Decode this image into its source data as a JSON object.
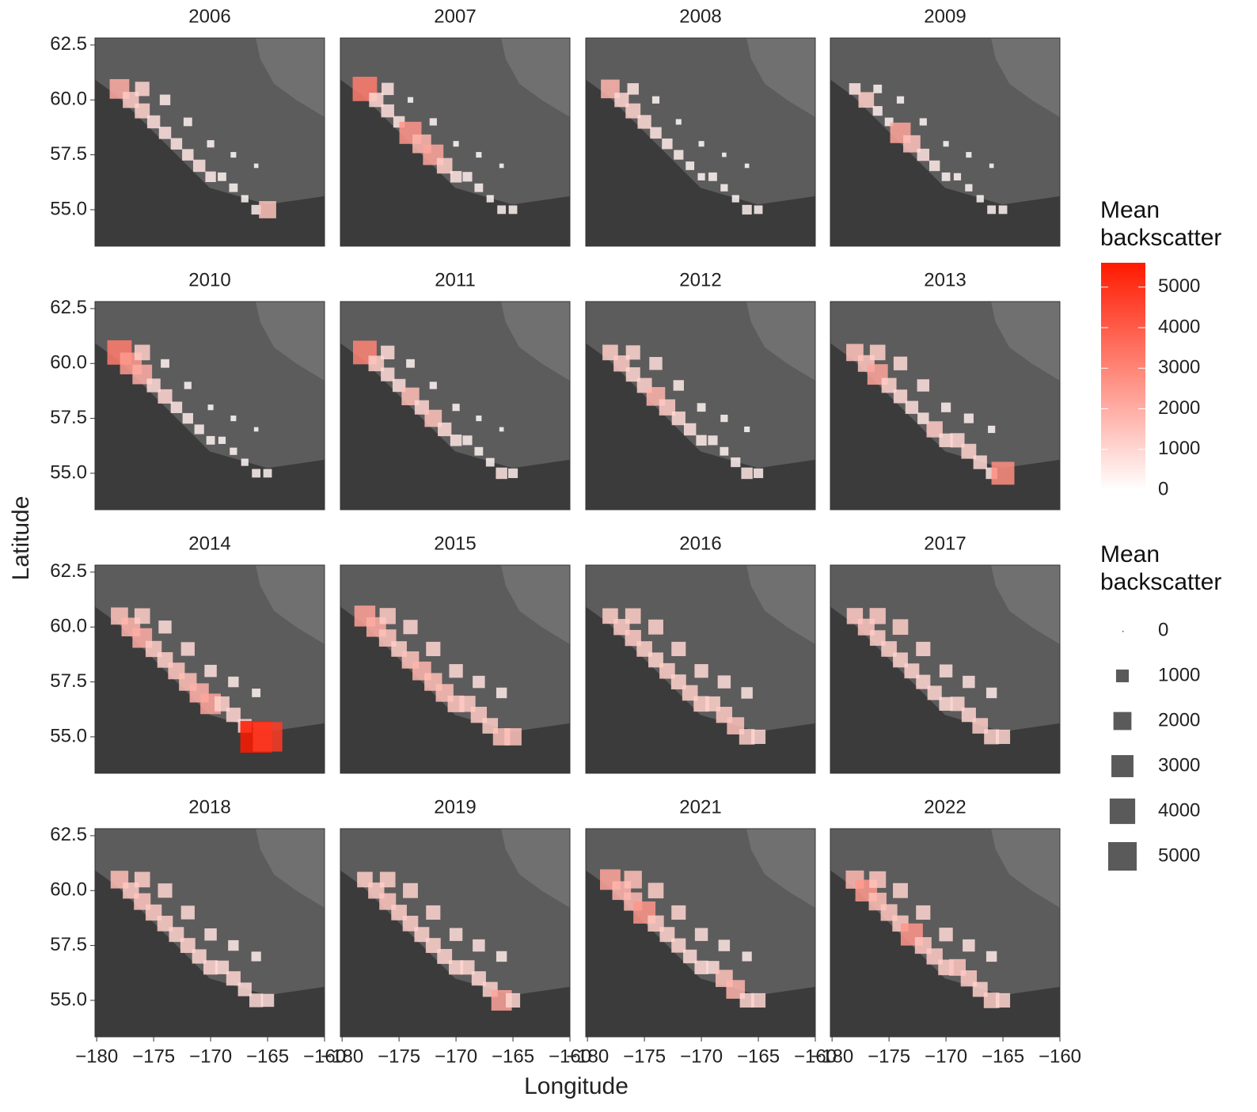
{
  "chart_data": {
    "type": "scatter",
    "x_label": "Longitude",
    "y_label": "Latitude",
    "xlim": [
      -180.15,
      -160
    ],
    "ylim": [
      53.34,
      62.82
    ],
    "xticks": [
      {
        "value": -180,
        "label": "−180"
      },
      {
        "value": -175,
        "label": "−175"
      },
      {
        "value": -170,
        "label": "−170"
      },
      {
        "value": -165,
        "label": "−165"
      },
      {
        "value": -160,
        "label": "−160"
      }
    ],
    "yticks": [
      {
        "value": 55,
        "label": "55.0"
      },
      {
        "value": 57.5,
        "label": "57.5"
      },
      {
        "value": 60,
        "label": "60.0"
      },
      {
        "value": 62.5,
        "label": "62.5"
      }
    ],
    "color_legend": {
      "title": "Mean backscatter",
      "range": [
        0,
        5600
      ],
      "ticks": [
        0,
        1000,
        2000,
        3000,
        4000,
        5000
      ],
      "colors": [
        "#ffffff",
        "#ff1a00"
      ]
    },
    "size_legend": {
      "title": "Mean backscatter",
      "ticks": [
        0,
        1000,
        2000,
        3000,
        4000,
        5000
      ],
      "color": "#5a5a5a"
    },
    "facets": [
      {
        "title": "2006",
        "x": [
          -178,
          -177,
          -176,
          -176,
          -175,
          -174,
          -173,
          -172,
          -171,
          -170,
          -169,
          -168,
          -167,
          -166,
          -165,
          -174,
          -172,
          -170,
          -168,
          -166
        ],
        "y": [
          60.5,
          60,
          60.5,
          59.5,
          59,
          58.5,
          58,
          57.5,
          57,
          56.5,
          56.5,
          56,
          55.5,
          55,
          55,
          60,
          59,
          58,
          57.5,
          57
        ],
        "values": [
          2000,
          1300,
          1000,
          1100,
          800,
          700,
          600,
          600,
          700,
          500,
          300,
          300,
          200,
          400,
          1500,
          500,
          300,
          200,
          100,
          50
        ]
      },
      {
        "title": "2007",
        "x": [
          -178,
          -177,
          -176,
          -176,
          -175,
          -174,
          -173,
          -172,
          -171,
          -170,
          -169,
          -168,
          -167,
          -166,
          -165,
          -174,
          -172,
          -170,
          -168,
          -166
        ],
        "y": [
          60.5,
          60,
          60.5,
          59.5,
          59,
          58.5,
          58,
          57.5,
          57,
          56.5,
          56.5,
          56,
          55.5,
          55,
          55,
          60,
          59,
          58,
          57.5,
          57
        ],
        "values": [
          3200,
          1000,
          700,
          800,
          600,
          2600,
          1800,
          2200,
          1200,
          600,
          400,
          300,
          200,
          300,
          300,
          100,
          200,
          100,
          100,
          50
        ]
      },
      {
        "title": "2008",
        "x": [
          -178,
          -177,
          -176,
          -176,
          -175,
          -174,
          -173,
          -172,
          -171,
          -170,
          -169,
          -168,
          -167,
          -166,
          -165,
          -174,
          -172,
          -170,
          -168,
          -166
        ],
        "y": [
          60.5,
          60,
          60.5,
          59.5,
          59,
          58.5,
          58,
          57.5,
          57,
          56.5,
          56.5,
          56,
          55.5,
          55,
          55,
          60,
          59,
          58,
          57.5,
          57
        ],
        "values": [
          1800,
          1000,
          600,
          1100,
          900,
          600,
          500,
          400,
          300,
          200,
          300,
          200,
          200,
          400,
          300,
          200,
          100,
          100,
          50,
          50
        ]
      },
      {
        "title": "2009",
        "x": [
          -178,
          -177,
          -176,
          -176,
          -175,
          -174,
          -173,
          -172,
          -171,
          -170,
          -169,
          -168,
          -167,
          -166,
          -165,
          -174,
          -172,
          -170,
          -168,
          -166
        ],
        "y": [
          60.5,
          60,
          60.5,
          59.5,
          59,
          58.5,
          58,
          57.5,
          57,
          56.5,
          56.5,
          56,
          55.5,
          55,
          55,
          60,
          59,
          58,
          57.5,
          57
        ],
        "values": [
          600,
          1200,
          300,
          400,
          300,
          2200,
          1500,
          700,
          500,
          300,
          200,
          200,
          200,
          300,
          300,
          200,
          200,
          100,
          100,
          50
        ]
      },
      {
        "title": "2010",
        "x": [
          -178,
          -177,
          -176,
          -176,
          -175,
          -174,
          -173,
          -172,
          -171,
          -170,
          -169,
          -168,
          -167,
          -166,
          -165,
          -174,
          -172,
          -170,
          -168,
          -166
        ],
        "y": [
          60.5,
          60,
          60.5,
          59.5,
          59,
          58.5,
          58,
          57.5,
          57,
          56.5,
          56.5,
          56,
          55.5,
          55,
          55,
          60,
          59,
          58,
          57.5,
          57
        ],
        "values": [
          3200,
          2500,
          1200,
          2000,
          900,
          1000,
          600,
          500,
          400,
          300,
          200,
          200,
          200,
          300,
          300,
          300,
          200,
          100,
          100,
          50
        ]
      },
      {
        "title": "2011",
        "x": [
          -178,
          -177,
          -176,
          -176,
          -175,
          -174,
          -173,
          -172,
          -171,
          -170,
          -169,
          -168,
          -167,
          -166,
          -165,
          -174,
          -172,
          -170,
          -168,
          -166
        ],
        "y": [
          60.5,
          60,
          60.5,
          59.5,
          59,
          58.5,
          58,
          57.5,
          57,
          56.5,
          56.5,
          56,
          55.5,
          55,
          55,
          60,
          59,
          58,
          57.5,
          57
        ],
        "values": [
          3000,
          1200,
          900,
          900,
          800,
          1600,
          1000,
          1500,
          900,
          600,
          400,
          300,
          300,
          600,
          400,
          300,
          200,
          200,
          100,
          50
        ]
      },
      {
        "title": "2012",
        "x": [
          -178,
          -177,
          -176,
          -176,
          -175,
          -174,
          -173,
          -172,
          -171,
          -170,
          -169,
          -168,
          -167,
          -166,
          -165,
          -174,
          -172,
          -170,
          -168,
          -166
        ],
        "y": [
          60.5,
          60,
          60.5,
          59.5,
          59,
          58.5,
          58,
          57.5,
          57,
          56.5,
          56.5,
          56,
          55.5,
          55,
          55,
          60,
          59,
          58,
          57.5,
          57
        ],
        "values": [
          1200,
          1300,
          1000,
          1000,
          1100,
          1800,
          1300,
          900,
          700,
          500,
          400,
          300,
          400,
          600,
          400,
          800,
          500,
          300,
          200,
          100
        ]
      },
      {
        "title": "2013",
        "x": [
          -178,
          -177,
          -176,
          -176,
          -175,
          -174,
          -173,
          -172,
          -171,
          -170,
          -169,
          -168,
          -167,
          -166,
          -165,
          -174,
          -172,
          -170,
          -168,
          -166
        ],
        "y": [
          60.5,
          60,
          60.5,
          59.5,
          59,
          58.5,
          58,
          57.5,
          57,
          56.5,
          56.5,
          56,
          55.5,
          55,
          55,
          60,
          59,
          58,
          57.5,
          57
        ],
        "values": [
          1500,
          1400,
          1200,
          2200,
          1100,
          900,
          800,
          600,
          1300,
          900,
          1000,
          1100,
          900,
          600,
          2800,
          900,
          700,
          400,
          400,
          200
        ]
      },
      {
        "title": "2014",
        "x": [
          -178,
          -177,
          -176,
          -176,
          -175,
          -174,
          -173,
          -172,
          -171,
          -170,
          -169,
          -168,
          -167,
          -166,
          -165,
          -174,
          -172,
          -170,
          -168,
          -166
        ],
        "y": [
          60.5,
          60,
          60.5,
          59.5,
          59,
          58.5,
          58,
          57.5,
          57,
          56.5,
          56.5,
          56,
          55.5,
          55,
          55,
          60,
          59,
          58,
          57.5,
          57
        ],
        "values": [
          1500,
          1800,
          1200,
          2000,
          1300,
          1200,
          1400,
          1600,
          1900,
          2200,
          1100,
          1000,
          900,
          5600,
          4800,
          800,
          900,
          700,
          500,
          300
        ]
      },
      {
        "title": "2015",
        "x": [
          -178,
          -177,
          -176,
          -176,
          -175,
          -174,
          -173,
          -172,
          -171,
          -170,
          -169,
          -168,
          -167,
          -166,
          -165,
          -174,
          -172,
          -170,
          -168,
          -166
        ],
        "y": [
          60.5,
          60,
          60.5,
          59.5,
          59,
          58.5,
          58,
          57.5,
          57,
          56.5,
          56.5,
          56,
          55.5,
          55,
          55,
          60,
          59,
          58,
          57.5,
          57
        ],
        "values": [
          2300,
          2000,
          1300,
          1500,
          1200,
          1500,
          1800,
          1600,
          1600,
          1400,
          1300,
          1300,
          1200,
          1500,
          1500,
          1000,
          1000,
          900,
          700,
          500
        ]
      },
      {
        "title": "2016",
        "x": [
          -178,
          -177,
          -176,
          -176,
          -175,
          -174,
          -173,
          -172,
          -171,
          -170,
          -169,
          -168,
          -167,
          -166,
          -165,
          -174,
          -172,
          -170,
          -168,
          -166
        ],
        "y": [
          60.5,
          60,
          60.5,
          59.5,
          59,
          58.5,
          58,
          57.5,
          57,
          56.5,
          56.5,
          56,
          55.5,
          55,
          55,
          60,
          59,
          58,
          57.5,
          57
        ],
        "values": [
          1200,
          1300,
          1200,
          1300,
          1200,
          1100,
          1200,
          1100,
          1200,
          1200,
          1100,
          1300,
          1500,
          1200,
          1000,
          1100,
          1000,
          900,
          800,
          600
        ]
      },
      {
        "title": "2017",
        "x": [
          -178,
          -177,
          -176,
          -176,
          -175,
          -174,
          -173,
          -172,
          -171,
          -170,
          -169,
          -168,
          -167,
          -166,
          -165,
          -174,
          -172,
          -170,
          -168,
          -166
        ],
        "y": [
          60.5,
          60,
          60.5,
          59.5,
          59,
          58.5,
          58,
          57.5,
          57,
          56.5,
          56.5,
          56,
          55.5,
          55,
          55,
          60,
          59,
          58,
          57.5,
          57
        ],
        "values": [
          1300,
          1400,
          1300,
          1200,
          1200,
          1100,
          1100,
          1000,
          1000,
          900,
          1000,
          1000,
          1200,
          1100,
          1000,
          1200,
          1000,
          800,
          700,
          500
        ]
      },
      {
        "title": "2018",
        "x": [
          -178,
          -177,
          -176,
          -176,
          -175,
          -174,
          -173,
          -172,
          -171,
          -170,
          -169,
          -168,
          -167,
          -166,
          -165,
          -174,
          -172,
          -170,
          -168,
          -166
        ],
        "y": [
          60.5,
          60,
          60.5,
          59.5,
          59,
          58.5,
          58,
          57.5,
          57,
          56.5,
          56.5,
          56,
          55.5,
          55,
          55,
          60,
          59,
          58,
          57.5,
          57
        ],
        "values": [
          1600,
          1300,
          1200,
          1400,
          1300,
          1200,
          1100,
          1100,
          1000,
          1000,
          900,
          1000,
          900,
          900,
          800,
          1000,
          900,
          700,
          500,
          400
        ]
      },
      {
        "title": "2019",
        "x": [
          -178,
          -177,
          -176,
          -176,
          -175,
          -174,
          -173,
          -172,
          -171,
          -170,
          -169,
          -168,
          -167,
          -166,
          -165,
          -174,
          -172,
          -170,
          -168,
          -166
        ],
        "y": [
          60.5,
          60,
          60.5,
          59.5,
          59,
          58.5,
          58,
          57.5,
          57,
          56.5,
          56.5,
          56,
          55.5,
          55,
          55,
          60,
          59,
          58,
          57.5,
          57
        ],
        "values": [
          1200,
          1300,
          1200,
          1400,
          1200,
          1200,
          1100,
          1100,
          1100,
          1000,
          1000,
          1000,
          1100,
          2200,
          1000,
          1100,
          1000,
          800,
          700,
          500
        ]
      },
      {
        "title": "2021",
        "x": [
          -178,
          -177,
          -176,
          -176,
          -175,
          -174,
          -173,
          -172,
          -171,
          -170,
          -169,
          -168,
          -167,
          -166,
          -165,
          -174,
          -172,
          -170,
          -168,
          -166
        ],
        "y": [
          60.5,
          60,
          60.5,
          59.5,
          59,
          58.5,
          58,
          57.5,
          57,
          56.5,
          56.5,
          56,
          55.5,
          55,
          55,
          60,
          59,
          58,
          57.5,
          57
        ],
        "values": [
          2200,
          1800,
          1600,
          1700,
          2600,
          1300,
          1100,
          1000,
          900,
          900,
          800,
          1500,
          1800,
          1000,
          1000,
          1200,
          1000,
          800,
          600,
          400
        ]
      },
      {
        "title": "2022",
        "x": [
          -178,
          -177,
          -176,
          -176,
          -175,
          -174,
          -173,
          -172,
          -171,
          -170,
          -169,
          -168,
          -167,
          -166,
          -165,
          -174,
          -172,
          -170,
          -168,
          -166
        ],
        "y": [
          60.5,
          60,
          60.5,
          59.5,
          59,
          58.5,
          58,
          57.5,
          57,
          56.5,
          56.5,
          56,
          55.5,
          55,
          55,
          60,
          59,
          58,
          57.5,
          57
        ],
        "values": [
          1700,
          2500,
          1400,
          1600,
          1400,
          1300,
          2600,
          1400,
          1300,
          1200,
          1400,
          1300,
          1100,
          1200,
          1000,
          1100,
          1000,
          900,
          700,
          500
        ]
      }
    ]
  }
}
